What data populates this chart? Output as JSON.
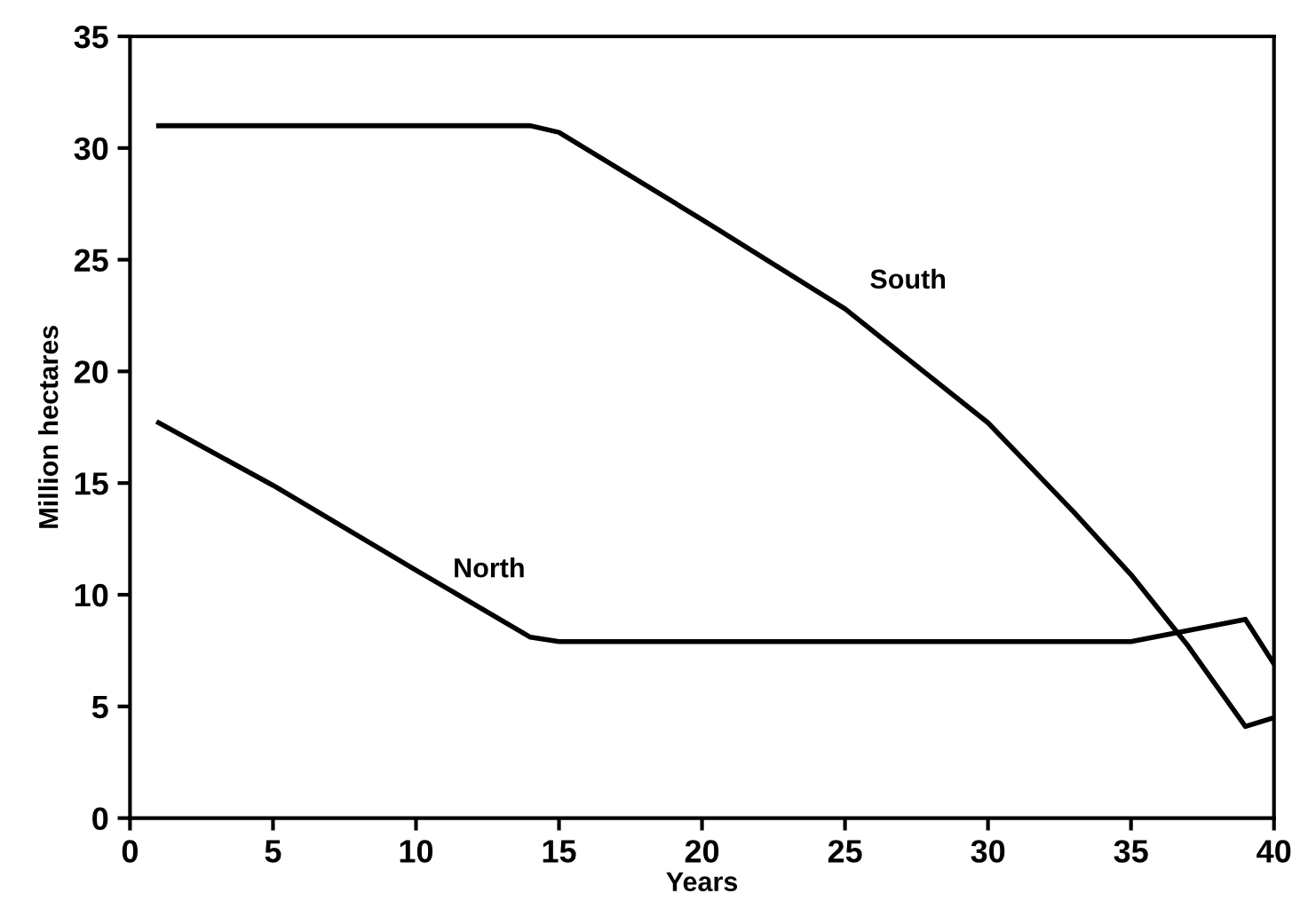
{
  "chart_data": {
    "type": "line",
    "xlabel": "Years",
    "ylabel": "Million hectares",
    "xlim": [
      0,
      40
    ],
    "ylim": [
      0,
      35
    ],
    "xticks": [
      0,
      5,
      10,
      15,
      20,
      25,
      30,
      35,
      40
    ],
    "yticks": [
      0,
      5,
      10,
      15,
      20,
      25,
      30,
      35
    ],
    "grid": false,
    "legend": false,
    "marker": "none",
    "line_style": "solid",
    "series": [
      {
        "name": "South",
        "color": "#000000",
        "x": [
          1,
          5,
          10,
          14,
          15,
          20,
          25,
          30,
          33,
          35,
          37,
          39,
          40
        ],
        "values": [
          31,
          31,
          31,
          31,
          30.7,
          26.8,
          22.8,
          17.7,
          13.7,
          10.9,
          7.7,
          4.1,
          4.5
        ]
      },
      {
        "name": "North",
        "color": "#000000",
        "x": [
          1,
          5,
          10,
          14,
          15,
          20,
          25,
          30,
          35,
          39,
          40
        ],
        "values": [
          17.7,
          14.9,
          11.1,
          8.1,
          7.9,
          7.9,
          7.9,
          7.9,
          7.9,
          8.9,
          6.9
        ]
      }
    ]
  }
}
